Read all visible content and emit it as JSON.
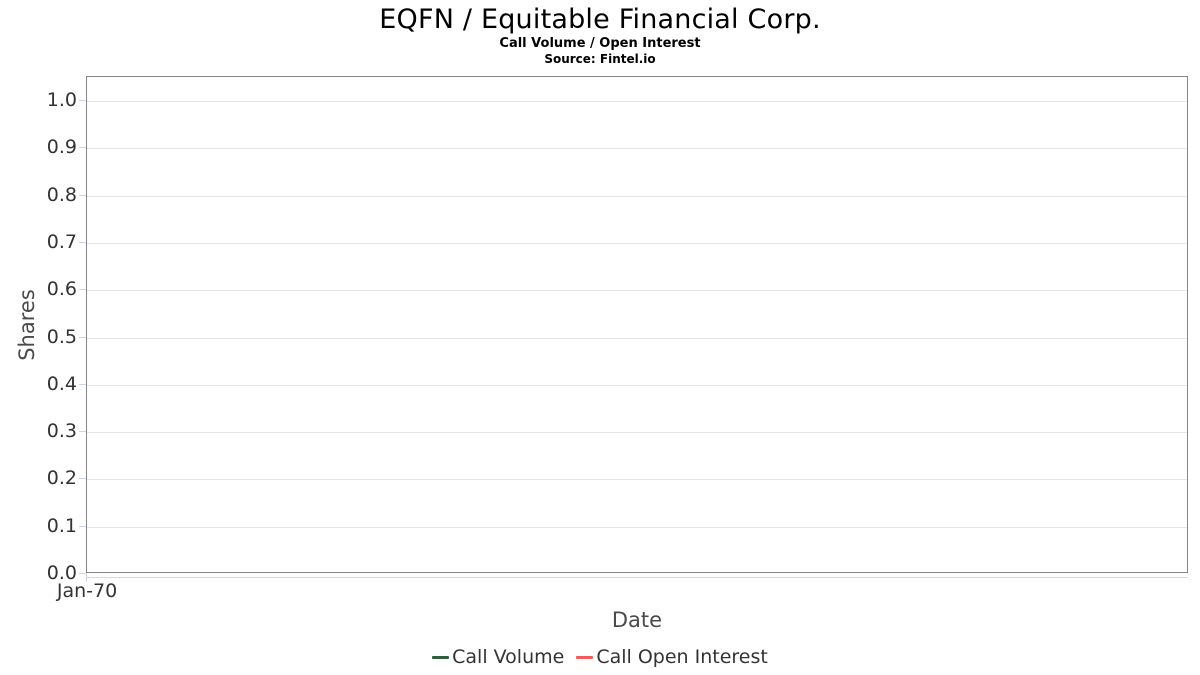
{
  "chart_data": {
    "type": "line",
    "title": "EQFN / Equitable Financial Corp.",
    "subtitle": "Call Volume / Open Interest",
    "source": "Source: Fintel.io",
    "xlabel": "Date",
    "ylabel": "Shares",
    "ylim": [
      0.0,
      1.0
    ],
    "y_ticks": [
      "1.0",
      "0.9",
      "0.8",
      "0.7",
      "0.6",
      "0.5",
      "0.4",
      "0.3",
      "0.2",
      "0.1",
      "0.0"
    ],
    "x_ticks": [
      "Jan-70"
    ],
    "grid": "horizontal-only",
    "legend_position": "bottom-center",
    "plot_empty": true,
    "series": [
      {
        "name": "Call Volume",
        "color": "#2d5f3e",
        "values": []
      },
      {
        "name": "Call Open Interest",
        "color": "#f45b5b",
        "values": []
      }
    ]
  },
  "colors": {
    "plot_border": "#858585",
    "gridline": "#e6e6e6",
    "tick_mark": "#ccd6eb",
    "axis_line": "#d6dbe2",
    "tick_text": "#333333",
    "axis_title_text": "#4a4a4a",
    "title_text": "#000000"
  }
}
